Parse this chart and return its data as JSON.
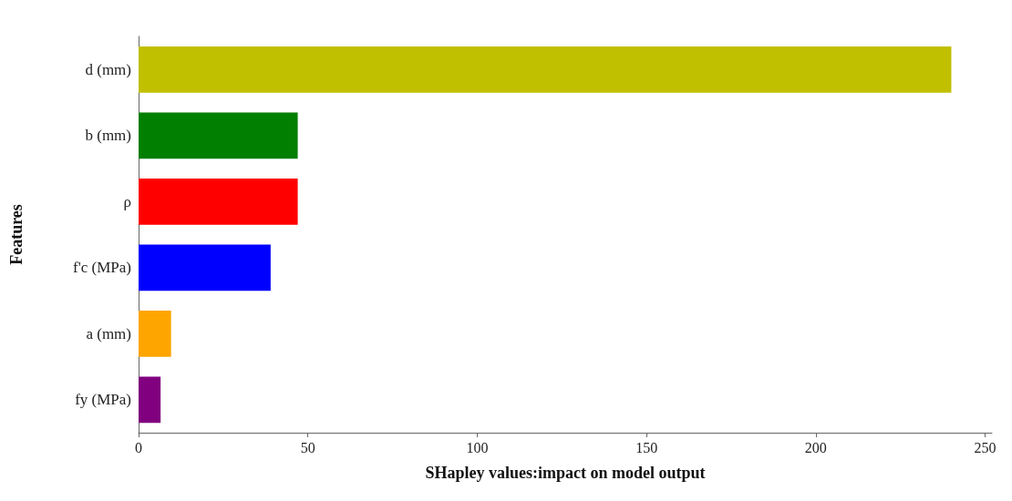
{
  "chart_data": {
    "type": "bar",
    "orientation": "horizontal",
    "xlabel": "SHapley values:impact on model output",
    "ylabel": "Features",
    "categories": [
      "d (mm)",
      "b (mm)",
      "ρ",
      "f'c (MPa)",
      "a (mm)",
      "fy (MPa)"
    ],
    "values": [
      240,
      47,
      47,
      39,
      9.6,
      6.5
    ],
    "colors": [
      "#c0bf00",
      "#007f00",
      "#fe0000",
      "#0000fe",
      "#ffa500",
      "#800080"
    ],
    "xlim": [
      0,
      252
    ],
    "xticks": [
      0,
      50,
      100,
      150,
      200,
      250
    ],
    "grid": false
  }
}
